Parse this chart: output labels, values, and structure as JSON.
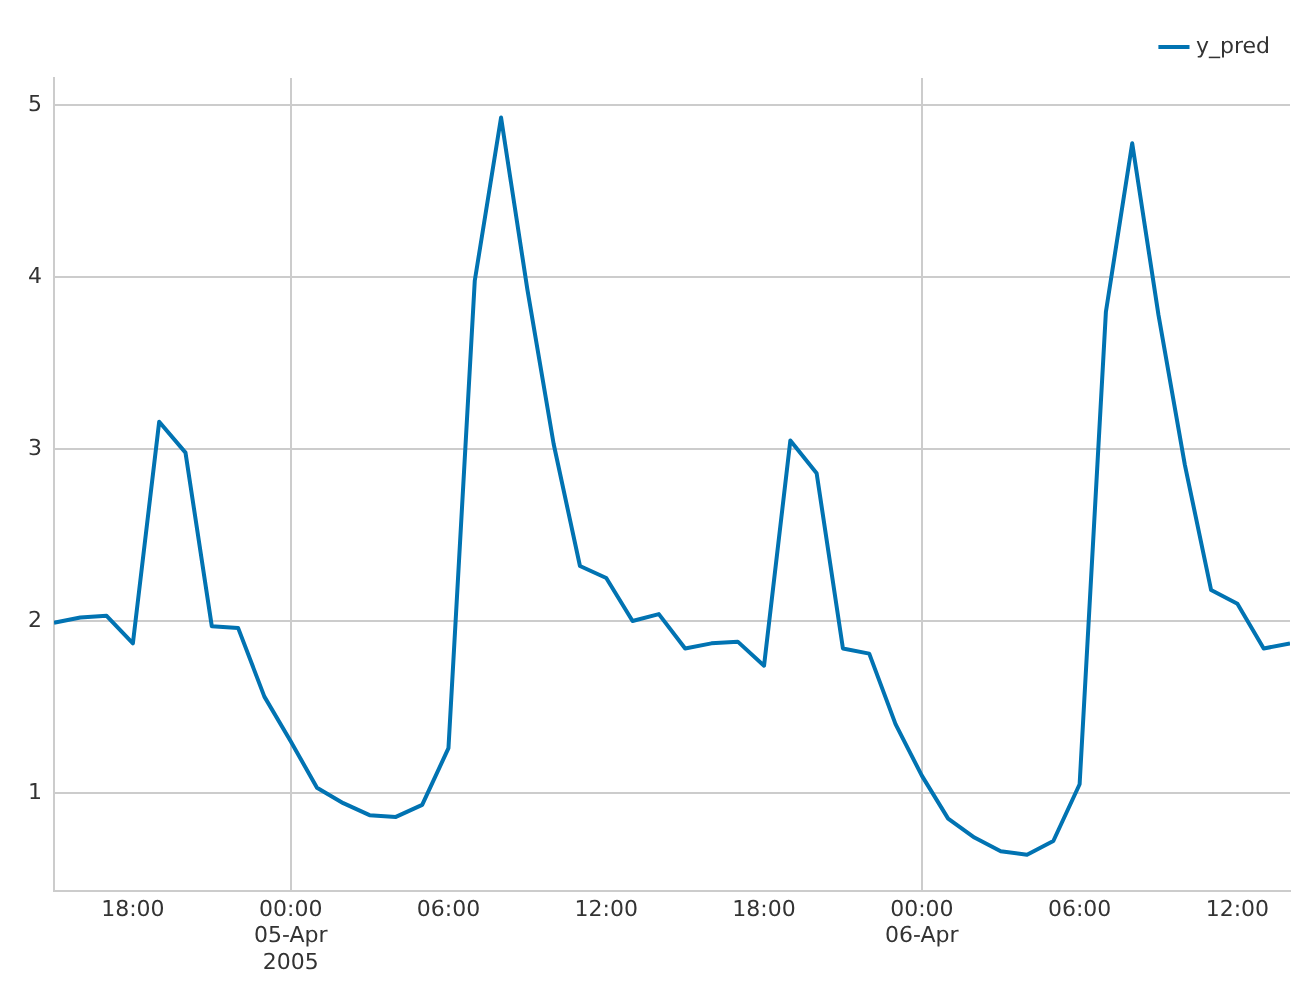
{
  "chart_data": {
    "type": "line",
    "x": [
      "2005-04-04T15:00",
      "2005-04-04T16:00",
      "2005-04-04T17:00",
      "2005-04-04T18:00",
      "2005-04-04T19:00",
      "2005-04-04T20:00",
      "2005-04-04T21:00",
      "2005-04-04T22:00",
      "2005-04-04T23:00",
      "2005-04-05T00:00",
      "2005-04-05T01:00",
      "2005-04-05T02:00",
      "2005-04-05T03:00",
      "2005-04-05T04:00",
      "2005-04-05T05:00",
      "2005-04-05T06:00",
      "2005-04-05T07:00",
      "2005-04-05T08:00",
      "2005-04-05T09:00",
      "2005-04-05T10:00",
      "2005-04-05T11:00",
      "2005-04-05T12:00",
      "2005-04-05T13:00",
      "2005-04-05T14:00",
      "2005-04-05T15:00",
      "2005-04-05T16:00",
      "2005-04-05T17:00",
      "2005-04-05T18:00",
      "2005-04-05T19:00",
      "2005-04-05T20:00",
      "2005-04-05T21:00",
      "2005-04-05T22:00",
      "2005-04-05T23:00",
      "2005-04-06T00:00",
      "2005-04-06T01:00",
      "2005-04-06T02:00",
      "2005-04-06T03:00",
      "2005-04-06T04:00",
      "2005-04-06T05:00",
      "2005-04-06T06:00",
      "2005-04-06T07:00",
      "2005-04-06T08:00",
      "2005-04-06T09:00",
      "2005-04-06T10:00",
      "2005-04-06T11:00",
      "2005-04-06T12:00",
      "2005-04-06T13:00",
      "2005-04-06T14:00"
    ],
    "series": [
      {
        "name": "y_pred",
        "color": "#0173b2",
        "values": [
          1.99,
          2.02,
          2.03,
          1.87,
          3.16,
          2.98,
          1.97,
          1.96,
          1.56,
          1.3,
          1.03,
          0.94,
          0.87,
          0.86,
          0.93,
          1.26,
          3.98,
          4.93,
          3.93,
          3.03,
          2.32,
          2.25,
          2.0,
          2.04,
          1.84,
          1.87,
          1.88,
          1.74,
          3.05,
          2.86,
          1.84,
          1.81,
          1.4,
          1.1,
          0.85,
          0.74,
          0.66,
          0.64,
          0.72,
          1.05,
          3.8,
          4.78,
          3.78,
          2.91,
          2.18,
          2.1,
          1.84,
          1.87
        ]
      }
    ],
    "xlim": [
      "2005-04-04T15:00",
      "2005-04-06T14:00"
    ],
    "xticks": [
      {
        "value": "2005-04-04T18:00",
        "label": "18:00"
      },
      {
        "value": "2005-04-05T00:00",
        "label": "00:00\n05-Apr\n2005"
      },
      {
        "value": "2005-04-05T06:00",
        "label": "06:00"
      },
      {
        "value": "2005-04-05T12:00",
        "label": "12:00"
      },
      {
        "value": "2005-04-05T18:00",
        "label": "18:00"
      },
      {
        "value": "2005-04-06T00:00",
        "label": "00:00\n06-Apr"
      },
      {
        "value": "2005-04-06T06:00",
        "label": "06:00"
      },
      {
        "value": "2005-04-06T12:00",
        "label": "12:00"
      }
    ],
    "ylim": [
      0.43,
      5.16
    ],
    "yticks": [
      1,
      2,
      3,
      4,
      5
    ],
    "grid": true,
    "legend": "top right",
    "line_style": "solid",
    "marker": "none"
  }
}
